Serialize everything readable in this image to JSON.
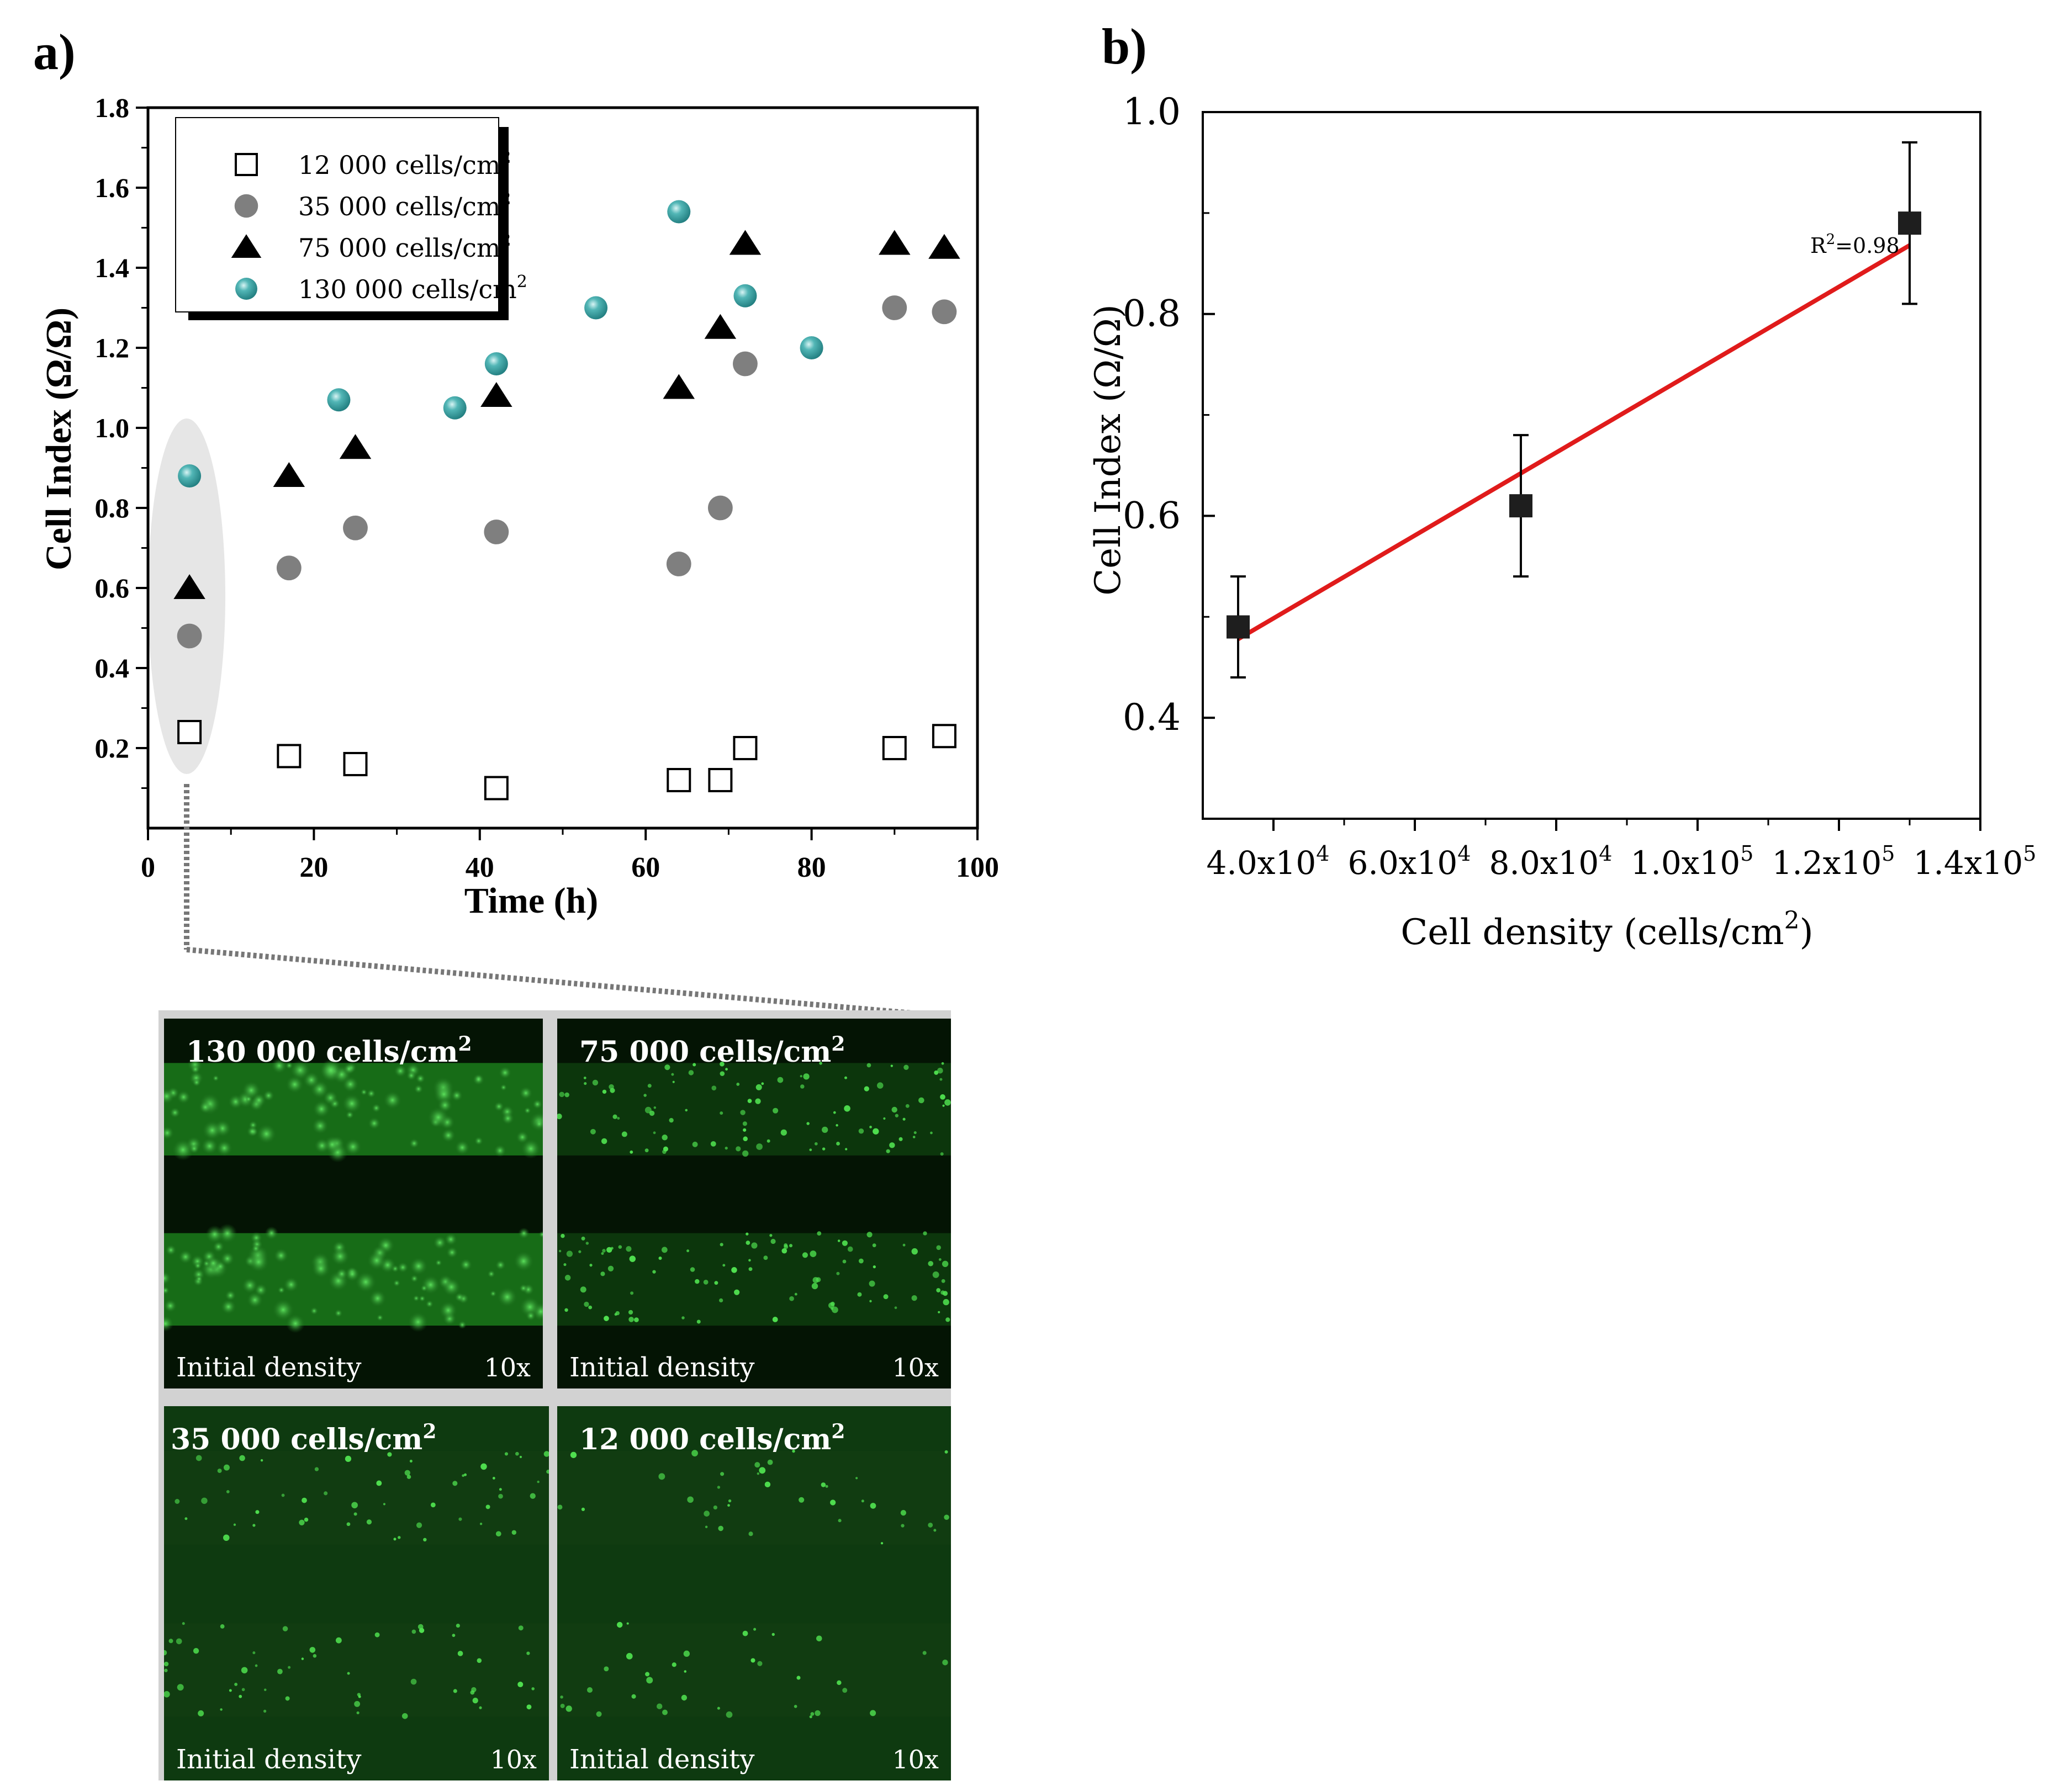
{
  "panel_labels": {
    "a": "a)",
    "b": "b)"
  },
  "chart_data": [
    {
      "type": "scatter",
      "panel": "a)",
      "title": "",
      "xlabel": "Time (h)",
      "ylabel": "Cell Index (Ω/Ω)",
      "xlim": [
        0,
        100
      ],
      "ylim": [
        0,
        1.8
      ],
      "xticks": [
        0,
        20,
        40,
        60,
        80,
        100
      ],
      "yticks": [
        0.2,
        0.4,
        0.6,
        0.8,
        1.0,
        1.2,
        1.4,
        1.6,
        1.8
      ],
      "legend_position": "top-left",
      "series": [
        {
          "name": "12 000 cells/cm²",
          "label": "12 000 cells/cm",
          "marker": "open-square",
          "color": "#000000",
          "x": [
            5,
            17,
            25,
            42,
            64,
            69,
            72,
            90,
            96
          ],
          "y": [
            0.24,
            0.18,
            0.16,
            0.1,
            0.12,
            0.12,
            0.2,
            0.2,
            0.23
          ]
        },
        {
          "name": "35 000 cells/cm²",
          "label": "35 000 cells/cm",
          "marker": "filled-circle",
          "color": "#7f7f7f",
          "x": [
            5,
            17,
            25,
            42,
            64,
            69,
            72,
            90,
            96
          ],
          "y": [
            0.48,
            0.65,
            0.75,
            0.74,
            0.66,
            0.8,
            1.16,
            1.3,
            1.29
          ]
        },
        {
          "name": "75 000 cells/cm²",
          "label": "75 000 cells/cm",
          "marker": "filled-triangle",
          "color": "#000000",
          "x": [
            5,
            17,
            25,
            42,
            64,
            69,
            72,
            90,
            96
          ],
          "y": [
            0.6,
            0.88,
            0.95,
            1.08,
            1.1,
            1.25,
            1.46,
            1.46,
            1.45
          ]
        },
        {
          "name": "130 000 cells/cm²",
          "label": "130 000 cells/cm",
          "marker": "teal-sphere",
          "color": "#2e9a9a",
          "x": [
            5,
            23,
            37,
            42,
            54,
            64,
            72,
            80
          ],
          "y": [
            0.88,
            1.07,
            1.05,
            1.16,
            1.3,
            1.54,
            1.33,
            1.2
          ]
        }
      ]
    },
    {
      "type": "scatter",
      "panel": "b)",
      "title": "",
      "xlabel": "Cell density (cells/cm",
      "xlabel_sup": "2",
      "ylabel": "Cell Index (Ω/Ω)",
      "xlim": [
        30000,
        140000
      ],
      "ylim": [
        0.3,
        1.0
      ],
      "xticks": [
        40000,
        60000,
        80000,
        100000,
        120000,
        140000
      ],
      "xtick_labels": [
        {
          "base": "4.0x10",
          "exp": "4"
        },
        {
          "base": "6.0x10",
          "exp": "4"
        },
        {
          "base": "8.0x10",
          "exp": "4"
        },
        {
          "base": "1.0x10",
          "exp": "5"
        },
        {
          "base": "1.2x10",
          "exp": "5"
        },
        {
          "base": "1.4x10",
          "exp": "5"
        }
      ],
      "yticks": [
        0.4,
        0.6,
        0.8,
        1.0
      ],
      "ytick_labels": [
        "0.4",
        "0.6",
        "0.8",
        "1.0"
      ],
      "points": [
        {
          "x": 35000,
          "y": 0.49,
          "err": 0.05
        },
        {
          "x": 75000,
          "y": 0.61,
          "err": 0.07
        },
        {
          "x": 130000,
          "y": 0.89,
          "err": 0.08
        }
      ],
      "fit_line": {
        "x": [
          35000,
          130000
        ],
        "y": [
          0.478,
          0.868
        ],
        "color": "#e01b1b"
      },
      "annotation": {
        "text": "=0.98",
        "prefix": "R",
        "sup": "2"
      }
    }
  ],
  "micrographs": [
    {
      "title": "130 000 cells/cm",
      "sup": "2",
      "caption": "Initial density",
      "magnification": "10x"
    },
    {
      "title": "75 000 cells/cm",
      "sup": "2",
      "caption": "Initial density",
      "magnification": "10x"
    },
    {
      "title": "35 000 cells/cm",
      "sup": "2",
      "caption": "Initial density",
      "magnification": "10x"
    },
    {
      "title": "12 000 cells/cm",
      "sup": "2",
      "caption": "Initial density",
      "magnification": "10x"
    }
  ],
  "legend_sup": "2"
}
